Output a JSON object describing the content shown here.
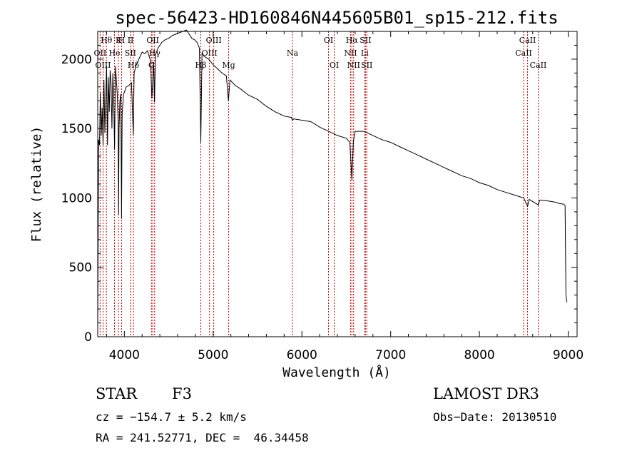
{
  "chart_data": {
    "type": "line",
    "title": "spec-56423-HD160846N445605B01_sp15-212.fits",
    "xlabel": "Wavelength (Å)",
    "ylabel": "Flux (relative)",
    "xlim": [
      3700,
      9100
    ],
    "ylim": [
      0,
      2200
    ],
    "xticks": [
      4000,
      5000,
      6000,
      7000,
      8000,
      9000
    ],
    "yticks": [
      0,
      500,
      1000,
      1500,
      2000
    ],
    "series": [
      {
        "name": "spectrum",
        "x": [
          3700,
          3710,
          3720,
          3730,
          3740,
          3750,
          3760,
          3770,
          3780,
          3790,
          3800,
          3810,
          3820,
          3830,
          3840,
          3850,
          3860,
          3870,
          3880,
          3890,
          3900,
          3910,
          3920,
          3930,
          3935,
          3940,
          3950,
          3960,
          3968,
          3975,
          3990,
          4000,
          4020,
          4050,
          4080,
          4101,
          4110,
          4130,
          4170,
          4200,
          4230,
          4260,
          4290,
          4300,
          4310,
          4330,
          4340,
          4350,
          4380,
          4420,
          4460,
          4500,
          4540,
          4580,
          4620,
          4660,
          4700,
          4730,
          4760,
          4790,
          4820,
          4845,
          4861,
          4875,
          4900,
          4950,
          5000,
          5050,
          5100,
          5150,
          5172,
          5190,
          5250,
          5300,
          5400,
          5500,
          5600,
          5700,
          5800,
          5880,
          5893,
          5910,
          6000,
          6100,
          6200,
          6300,
          6400,
          6500,
          6540,
          6563,
          6580,
          6600,
          6700,
          6800,
          6900,
          7000,
          7100,
          7200,
          7300,
          7400,
          7500,
          7600,
          7700,
          7800,
          7900,
          8000,
          8100,
          8200,
          8300,
          8400,
          8500,
          8542,
          8560,
          8662,
          8680,
          8750,
          8850,
          8900,
          8950,
          8965,
          8970,
          8975,
          8985
        ],
        "y": [
          0,
          1420,
          1380,
          1760,
          1450,
          1650,
          1380,
          1850,
          1470,
          1700,
          1950,
          1380,
          1870,
          1620,
          1920,
          1820,
          1500,
          1900,
          1720,
          1350,
          1950,
          1850,
          1750,
          1550,
          880,
          1500,
          1700,
          1750,
          850,
          1600,
          1750,
          1760,
          1800,
          1810,
          1830,
          1450,
          1900,
          1950,
          2010,
          2050,
          2040,
          2060,
          2000,
          1890,
          1720,
          1980,
          1690,
          2030,
          2080,
          2120,
          2140,
          2150,
          2170,
          2180,
          2190,
          2200,
          2210,
          2180,
          2150,
          2140,
          2120,
          2080,
          1400,
          2040,
          2020,
          2000,
          1960,
          1930,
          1900,
          1880,
          1700,
          1850,
          1810,
          1790,
          1740,
          1710,
          1660,
          1620,
          1590,
          1580,
          1560,
          1570,
          1560,
          1550,
          1510,
          1480,
          1450,
          1430,
          1400,
          1130,
          1410,
          1480,
          1480,
          1450,
          1420,
          1400,
          1370,
          1340,
          1310,
          1280,
          1250,
          1220,
          1190,
          1160,
          1140,
          1110,
          1090,
          1060,
          1040,
          1020,
          1000,
          940,
          990,
          950,
          985,
          980,
          970,
          960,
          955,
          945,
          600,
          300,
          250
        ]
      }
    ],
    "line_marks": [
      {
        "label": "Hθ",
        "x": 3798,
        "row": 1
      },
      {
        "label": "K",
        "x": 3934,
        "row": 1
      },
      {
        "label": "H",
        "x": 3969,
        "row": 1
      },
      {
        "label": "II",
        "x": 4070,
        "row": 1
      },
      {
        "label": "OII",
        "x": 4320,
        "row": 1
      },
      {
        "label": "OIII",
        "x": 5007,
        "row": 1
      },
      {
        "label": "OI",
        "x": 6300,
        "row": 1
      },
      {
        "label": "Hα",
        "x": 6563,
        "row": 1
      },
      {
        "label": "SII",
        "x": 6716,
        "row": 1
      },
      {
        "label": "CaII",
        "x": 8542,
        "row": 1
      },
      {
        "label": "OII",
        "x": 3727,
        "row": 2
      },
      {
        "label": "He",
        "x": 3889,
        "row": 2
      },
      {
        "label": "SII",
        "x": 4069,
        "row": 2
      },
      {
        "label": "Hγ",
        "x": 4341,
        "row": 2
      },
      {
        "label": "OIII",
        "x": 4959,
        "row": 2
      },
      {
        "label": "Na",
        "x": 5893,
        "row": 2
      },
      {
        "label": "NII",
        "x": 6548,
        "row": 2
      },
      {
        "label": "Li",
        "x": 6708,
        "row": 2
      },
      {
        "label": "CaII",
        "x": 8498,
        "row": 2
      },
      {
        "label": "OIII",
        "x": 3760,
        "row": 3
      },
      {
        "label": "Hδ",
        "x": 4102,
        "row": 3
      },
      {
        "label": "Mg",
        "x": 5175,
        "row": 3
      },
      {
        "label": "Hβ",
        "x": 4861,
        "row": 3
      },
      {
        "label": "G",
        "x": 4305,
        "row": 3
      },
      {
        "label": "OI",
        "x": 6364,
        "row": 3
      },
      {
        "label": "NII",
        "x": 6583,
        "row": 3
      },
      {
        "label": "SII",
        "x": 6731,
        "row": 3
      },
      {
        "label": "CaII",
        "x": 8662,
        "row": 3
      }
    ],
    "marker_color": "#cc0000"
  },
  "info": {
    "object_class": "STAR",
    "subclass": "F3",
    "survey": "LAMOST DR3",
    "cz": "cz = −154.7 ± 5.2 km/s",
    "obs_date": "Obs−Date: 20130510",
    "coords": "RA = 241.52771, DEC =  46.34458"
  }
}
